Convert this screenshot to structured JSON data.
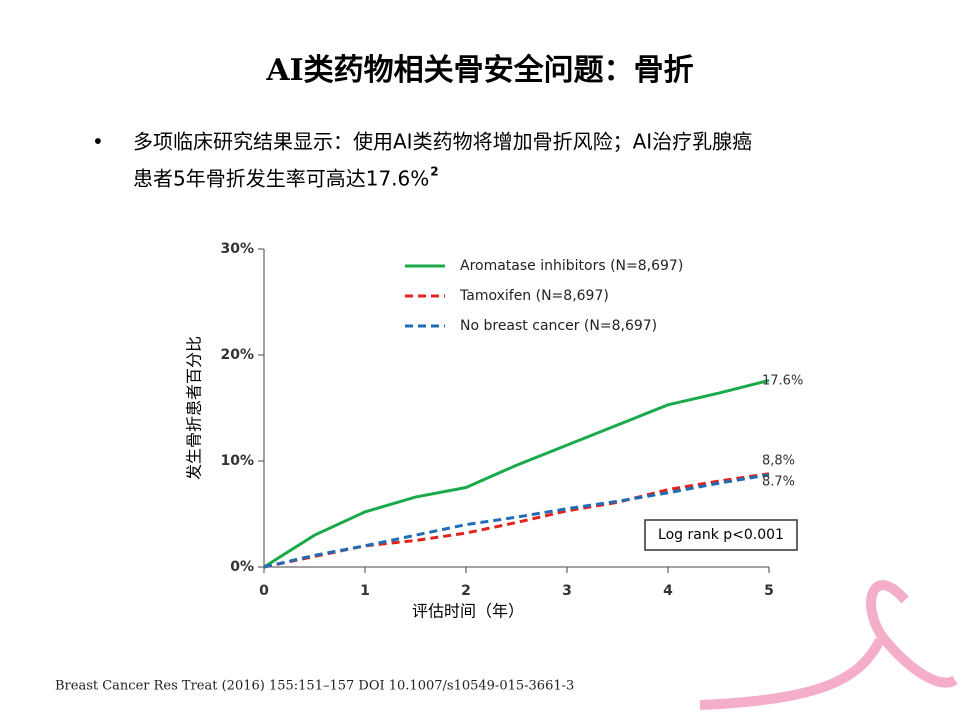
{
  "slide": {
    "title": "AI类药物相关骨安全问题：骨折",
    "bullet_lines": [
      "多项临床研究结果显示：使用AI类药物将增加骨折风险；AI治疗乳腺癌",
      "患者5年骨折发生率可高达17.6%"
    ],
    "superscript": "2",
    "citation": "Breast Cancer Res Treat (2016) 155:151–157 DOI 10.1007/s10549-015-3661-3"
  },
  "chart_data": {
    "type": "line",
    "x_label": "评估时间（年）",
    "y_label": "发生骨折患者百分比",
    "x": [
      0,
      0.5,
      1,
      1.5,
      2,
      2.5,
      3,
      3.5,
      4,
      4.5,
      5
    ],
    "series": [
      {
        "name": "Aromatase inhibitors (N=8,697)",
        "color": "#1aaa4a",
        "dash": false,
        "values": [
          0,
          3.0,
          5.2,
          6.6,
          7.5,
          9.6,
          11.5,
          13.4,
          15.3,
          16.4,
          17.6
        ]
      },
      {
        "name": "Tamoxifen (N=8,697)",
        "color": "#e0231c",
        "dash": true,
        "values": [
          0,
          1.0,
          2.0,
          2.5,
          3.2,
          4.2,
          5.3,
          6.1,
          7.3,
          8.1,
          8.8
        ]
      },
      {
        "name": "No breast cancer (N=8,697)",
        "color": "#1f6db5",
        "dash": true,
        "values": [
          0,
          1.1,
          2.0,
          3.0,
          4.0,
          4.7,
          5.5,
          6.2,
          7.0,
          7.9,
          8.7
        ]
      }
    ],
    "end_labels": [
      "17.6%",
      "8,8%",
      "8.7%"
    ],
    "annotation": "Log rank p<0.001",
    "xlim": [
      0,
      5
    ],
    "xticks": [
      0,
      1,
      2,
      3,
      4,
      5
    ],
    "ylim": [
      0,
      30
    ],
    "yticks": [
      {
        "value": 0,
        "label": "0%"
      },
      {
        "value": 10,
        "label": "10%"
      },
      {
        "value": 20,
        "label": "20%"
      },
      {
        "value": 30,
        "label": "30%"
      }
    ]
  }
}
